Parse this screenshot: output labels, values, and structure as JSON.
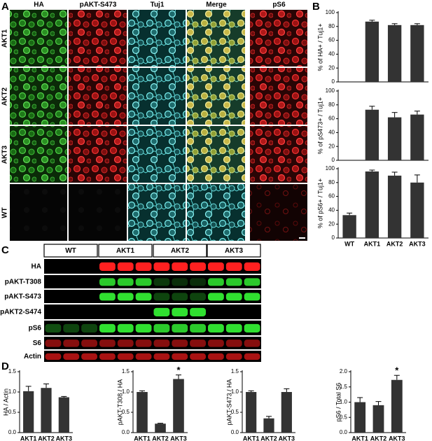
{
  "panel_labels": [
    "A",
    "B",
    "C",
    "D"
  ],
  "microscopy": {
    "columns": [
      "HA",
      "pAKT-S473",
      "Tuj1",
      "Merge",
      "pS6"
    ],
    "rows": [
      "AKT1",
      "AKT2",
      "AKT3",
      "WT"
    ]
  },
  "blot": {
    "groups": [
      "WT",
      "AKT1",
      "AKT2",
      "AKT3"
    ],
    "rows": [
      "HA",
      "pAKT-T308",
      "pAKT-S473",
      "pAKT2-S474",
      "pS6",
      "S6",
      "Actin"
    ]
  },
  "chart_data": [
    {
      "type": "bar",
      "y_label": "% of HA+ / Tuj1+",
      "categories": [
        null,
        null,
        null,
        null
      ],
      "values": [
        0,
        87,
        82,
        82
      ],
      "errors": [
        0,
        2,
        2,
        2
      ],
      "ylim": [
        0,
        100
      ],
      "yticks": [
        0,
        20,
        40,
        60,
        80,
        100
      ],
      "color": "#333333"
    },
    {
      "type": "bar",
      "y_label": "% of pS473+ / Tuj1+",
      "categories": [
        null,
        null,
        null,
        null
      ],
      "values": [
        0,
        73,
        62,
        66
      ],
      "errors": [
        0,
        5,
        7,
        5
      ],
      "ylim": [
        0,
        100
      ],
      "yticks": [
        0,
        20,
        40,
        60,
        80,
        100
      ],
      "color": "#333333"
    },
    {
      "type": "bar",
      "y_label": "% of pS6+ / Tuj1+",
      "categories": [
        "WT",
        "AKT1",
        "AKT2",
        "AKT3"
      ],
      "values": [
        33,
        96,
        90,
        80
      ],
      "errors": [
        3,
        2,
        5,
        11
      ],
      "ylim": [
        0,
        100
      ],
      "yticks": [
        0,
        20,
        40,
        60,
        80,
        100
      ],
      "color": "#333333"
    },
    {
      "type": "bar",
      "y_label": "HA / Actin",
      "categories": [
        "AKT1",
        "AKT2",
        "AKT3"
      ],
      "values": [
        1.02,
        1.1,
        0.87
      ],
      "errors": [
        0.12,
        0.1,
        0.02
      ],
      "ylim": [
        0,
        1.5
      ],
      "yticks": [
        {
          "value": 0,
          "label": "0.0"
        },
        0.5,
        {
          "value": 1,
          "label": "1.0"
        },
        1.5
      ],
      "color": "#333333"
    },
    {
      "type": "bar",
      "y_label": "pAKT-T308 / HA",
      "categories": [
        "AKT1",
        "AKT2",
        "AKT3"
      ],
      "values": [
        1.0,
        0.22,
        1.32
      ],
      "errors": [
        0.03,
        0.01,
        0.1
      ],
      "annotations": [
        null,
        null,
        "*"
      ],
      "ylim": [
        0,
        1.5
      ],
      "yticks": [
        {
          "value": 0,
          "label": "0.0"
        },
        0.5,
        {
          "value": 1,
          "label": "1.0"
        },
        1.5
      ],
      "color": "#333333"
    },
    {
      "type": "bar",
      "y_label": "pAKT-S473 / HA",
      "categories": [
        "AKT1",
        "AKT2",
        "AKT3"
      ],
      "values": [
        1.0,
        0.35,
        1.0
      ],
      "errors": [
        0.03,
        0.05,
        0.08
      ],
      "ylim": [
        0,
        1.5
      ],
      "yticks": [
        {
          "value": 0,
          "label": "0.0"
        },
        0.5,
        {
          "value": 1,
          "label": "1.0"
        },
        1.5
      ],
      "color": "#333333"
    },
    {
      "type": "bar",
      "y_label": "pS6 / Total S6",
      "categories": [
        "AKT1",
        "AKT2",
        "AKT3"
      ],
      "values": [
        1.0,
        0.9,
        1.73
      ],
      "errors": [
        0.15,
        0.12,
        0.15
      ],
      "annotations": [
        null,
        null,
        "*"
      ],
      "ylim": [
        0,
        2
      ],
      "yticks": [
        {
          "value": 0,
          "label": "0.0"
        },
        0.5,
        {
          "value": 1,
          "label": "1.0"
        },
        1.5,
        {
          "value": 2,
          "label": "2.0"
        }
      ],
      "color": "#333333"
    }
  ]
}
